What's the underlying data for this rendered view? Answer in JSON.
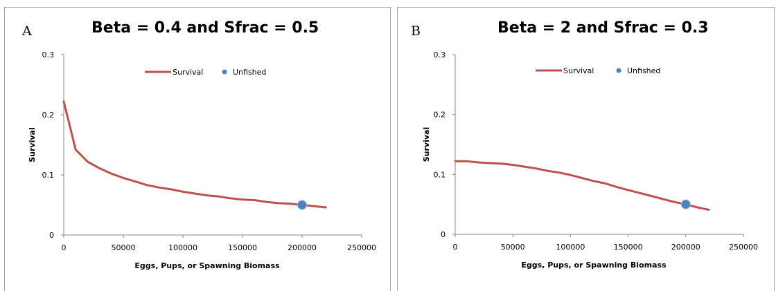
{
  "chart_data": [
    {
      "panel_label": "A",
      "type": "line",
      "title": "Beta = 0.4 and Sfrac = 0.5",
      "xlabel": "Eggs, Pups, or Spawning Biomass",
      "ylabel": "Survival",
      "xlim": [
        0,
        250000
      ],
      "ylim": [
        0,
        0.3
      ],
      "x_ticks": [
        "0",
        "50000",
        "100000",
        "150000",
        "200000",
        "250000"
      ],
      "y_ticks": [
        "0",
        "0.1",
        "0.2",
        "0.3"
      ],
      "grid": false,
      "legend": {
        "placement": "top",
        "entries": [
          "Survival",
          "Unfished"
        ]
      },
      "series": [
        {
          "name": "Survival",
          "kind": "line",
          "color": "#c0504d",
          "x": [
            0,
            10000,
            20000,
            30000,
            40000,
            50000,
            60000,
            70000,
            80000,
            90000,
            100000,
            110000,
            120000,
            130000,
            140000,
            150000,
            160000,
            170000,
            180000,
            190000,
            200000,
            210000,
            220000
          ],
          "y": [
            0.222,
            0.142,
            0.122,
            0.111,
            0.102,
            0.095,
            0.089,
            0.083,
            0.079,
            0.076,
            0.072,
            0.069,
            0.066,
            0.064,
            0.061,
            0.059,
            0.058,
            0.055,
            0.053,
            0.052,
            0.05,
            0.048,
            0.046
          ]
        },
        {
          "name": "Unfished",
          "kind": "point",
          "color": "#4f81bd",
          "x": [
            200000
          ],
          "y": [
            0.05
          ]
        }
      ]
    },
    {
      "panel_label": "B",
      "type": "line",
      "title": "Beta = 2 and Sfrac = 0.3",
      "xlabel": "Eggs, Pups, or Spawning Biomass",
      "ylabel": "Survival",
      "xlim": [
        0,
        250000
      ],
      "ylim": [
        0,
        0.3
      ],
      "x_ticks": [
        "0",
        "50000",
        "100000",
        "150000",
        "200000",
        "250000"
      ],
      "y_ticks": [
        "0",
        "0.1",
        "0.2",
        "0.3"
      ],
      "grid": false,
      "legend": {
        "placement": "top",
        "entries": [
          "Survival",
          "Unfished"
        ]
      },
      "series": [
        {
          "name": "Survival",
          "kind": "line",
          "color": "#c0504d",
          "x": [
            0,
            10000,
            20000,
            30000,
            40000,
            50000,
            60000,
            70000,
            80000,
            90000,
            100000,
            110000,
            120000,
            130000,
            140000,
            150000,
            160000,
            170000,
            180000,
            190000,
            200000,
            210000,
            220000
          ],
          "y": [
            0.122,
            0.122,
            0.12,
            0.119,
            0.118,
            0.116,
            0.113,
            0.11,
            0.106,
            0.103,
            0.099,
            0.094,
            0.089,
            0.085,
            0.079,
            0.074,
            0.069,
            0.064,
            0.059,
            0.054,
            0.05,
            0.045,
            0.041
          ]
        },
        {
          "name": "Unfished",
          "kind": "point",
          "color": "#4f81bd",
          "x": [
            200000
          ],
          "y": [
            0.05
          ]
        }
      ]
    }
  ]
}
